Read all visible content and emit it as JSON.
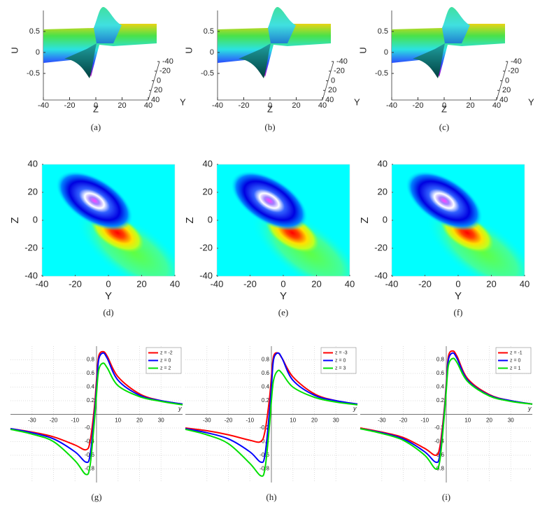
{
  "chart_data": [
    {
      "type": "surface",
      "caption": "(a)",
      "zlabel": "U",
      "xlabel": "Z",
      "ylabel": "Y",
      "zlim": [
        -1,
        1
      ],
      "zticks": [
        -0.5,
        0,
        0.5
      ],
      "xlim": [
        -40,
        40
      ],
      "xticks": [
        -40,
        -20,
        0,
        20,
        40
      ],
      "ylim": [
        -40,
        40
      ],
      "yticks": [
        -40,
        -20,
        0,
        20,
        40
      ]
    },
    {
      "type": "surface",
      "caption": "(b)",
      "zlabel": "U",
      "xlabel": "Z",
      "ylabel": "Y",
      "zlim": [
        -1,
        1
      ],
      "zticks": [
        -0.5,
        0,
        0.5
      ],
      "xlim": [
        -40,
        40
      ],
      "xticks": [
        -40,
        -20,
        0,
        20,
        40
      ],
      "ylim": [
        -40,
        40
      ],
      "yticks": [
        -40,
        -20,
        0,
        20,
        40
      ]
    },
    {
      "type": "surface",
      "caption": "(c)",
      "zlabel": "U",
      "xlabel": "Z",
      "ylabel": "Y",
      "zlim": [
        -1,
        1
      ],
      "zticks": [
        -0.5,
        0,
        0.5
      ],
      "xlim": [
        -40,
        40
      ],
      "xticks": [
        -40,
        -20,
        0,
        20,
        40
      ],
      "ylim": [
        -40,
        40
      ],
      "yticks": [
        -40,
        -20,
        0,
        20,
        40
      ]
    },
    {
      "type": "heatmap",
      "caption": "(d)",
      "xlabel": "Y",
      "ylabel": "Z",
      "xlim": [
        -40,
        40
      ],
      "xticks": [
        -40,
        -20,
        0,
        20,
        40
      ],
      "ylim": [
        -40,
        40
      ],
      "yticks": [
        -40,
        -20,
        0,
        20,
        40
      ]
    },
    {
      "type": "heatmap",
      "caption": "(e)",
      "xlabel": "Y",
      "ylabel": "Z",
      "xlim": [
        -40,
        40
      ],
      "xticks": [
        -40,
        -20,
        0,
        20,
        40
      ],
      "ylim": [
        -40,
        40
      ],
      "yticks": [
        -40,
        -20,
        0,
        20,
        40
      ]
    },
    {
      "type": "heatmap",
      "caption": "(f)",
      "xlabel": "Y",
      "ylabel": "Z",
      "xlim": [
        -40,
        40
      ],
      "xticks": [
        -40,
        -20,
        0,
        20,
        40
      ],
      "ylim": [
        -40,
        40
      ],
      "yticks": [
        -40,
        -20,
        0,
        20,
        40
      ]
    },
    {
      "type": "line",
      "caption": "(g)",
      "xlabel": "y",
      "xlim": [
        -40,
        40
      ],
      "xticks": [
        -30,
        -20,
        -10,
        10,
        20,
        30
      ],
      "ylim": [
        -1,
        1
      ],
      "yticks": [
        -0.8,
        -0.6,
        -0.4,
        -0.2,
        0.2,
        0.4,
        0.6,
        0.8
      ],
      "grid": true,
      "x": [
        -40,
        -30,
        -20,
        -10,
        -5,
        -3,
        -1,
        0,
        1,
        3,
        5,
        10,
        20,
        30,
        40
      ],
      "series": [
        {
          "name": "z = -2",
          "color": "#ff0000",
          "values": [
            -0.21,
            -0.26,
            -0.33,
            -0.45,
            -0.52,
            -0.4,
            0.1,
            0.5,
            0.85,
            0.92,
            0.85,
            0.55,
            0.3,
            0.2,
            0.15
          ]
        },
        {
          "name": "z = 0",
          "color": "#0000ff",
          "values": [
            -0.21,
            -0.27,
            -0.36,
            -0.55,
            -0.7,
            -0.6,
            0.0,
            0.4,
            0.8,
            0.9,
            0.82,
            0.5,
            0.28,
            0.2,
            0.15
          ]
        },
        {
          "name": "z = 2",
          "color": "#00e000",
          "values": [
            -0.22,
            -0.29,
            -0.4,
            -0.68,
            -0.88,
            -0.75,
            -0.1,
            0.3,
            0.65,
            0.75,
            0.68,
            0.42,
            0.26,
            0.19,
            0.14
          ]
        }
      ]
    },
    {
      "type": "line",
      "caption": "(h)",
      "xlabel": "y",
      "xlim": [
        -40,
        40
      ],
      "xticks": [
        -30,
        -20,
        -10,
        10,
        20,
        30
      ],
      "ylim": [
        -1,
        1
      ],
      "yticks": [
        -0.8,
        -0.6,
        -0.4,
        -0.2,
        0.2,
        0.4,
        0.6,
        0.8
      ],
      "grid": true,
      "x": [
        -40,
        -30,
        -20,
        -10,
        -5,
        -3,
        -1,
        0,
        1,
        3,
        5,
        10,
        20,
        30,
        40
      ],
      "series": [
        {
          "name": "z = -3",
          "color": "#ff0000",
          "values": [
            -0.2,
            -0.24,
            -0.3,
            -0.38,
            -0.4,
            -0.25,
            0.2,
            0.55,
            0.85,
            0.9,
            0.82,
            0.55,
            0.3,
            0.2,
            0.15
          ]
        },
        {
          "name": "z = 0",
          "color": "#0000ff",
          "values": [
            -0.21,
            -0.27,
            -0.36,
            -0.55,
            -0.7,
            -0.6,
            0.0,
            0.4,
            0.8,
            0.9,
            0.82,
            0.5,
            0.28,
            0.2,
            0.15
          ]
        },
        {
          "name": "z = 3",
          "color": "#00e000",
          "values": [
            -0.22,
            -0.3,
            -0.43,
            -0.72,
            -0.9,
            -0.8,
            -0.2,
            0.2,
            0.5,
            0.64,
            0.6,
            0.4,
            0.25,
            0.18,
            0.14
          ]
        }
      ]
    },
    {
      "type": "line",
      "caption": "(i)",
      "xlabel": "y",
      "xlim": [
        -40,
        40
      ],
      "xticks": [
        -30,
        -20,
        -10,
        10,
        20,
        30
      ],
      "ylim": [
        -1,
        1
      ],
      "yticks": [
        -0.8,
        -0.6,
        -0.4,
        -0.2,
        0.2,
        0.4,
        0.6,
        0.8
      ],
      "grid": true,
      "x": [
        -40,
        -30,
        -20,
        -10,
        -5,
        -3,
        -1,
        0,
        1,
        3,
        5,
        10,
        20,
        30,
        40
      ],
      "series": [
        {
          "name": "z = -1",
          "color": "#ff0000",
          "values": [
            -0.2,
            -0.26,
            -0.34,
            -0.5,
            -0.6,
            -0.48,
            0.05,
            0.45,
            0.85,
            0.93,
            0.85,
            0.52,
            0.29,
            0.2,
            0.15
          ]
        },
        {
          "name": "z = 0",
          "color": "#0000ff",
          "values": [
            -0.21,
            -0.27,
            -0.36,
            -0.55,
            -0.7,
            -0.6,
            0.0,
            0.4,
            0.8,
            0.9,
            0.82,
            0.5,
            0.28,
            0.2,
            0.15
          ]
        },
        {
          "name": "z = 1",
          "color": "#00e000",
          "values": [
            -0.21,
            -0.28,
            -0.38,
            -0.6,
            -0.8,
            -0.68,
            -0.05,
            0.35,
            0.72,
            0.82,
            0.76,
            0.48,
            0.27,
            0.19,
            0.15
          ]
        }
      ]
    }
  ]
}
